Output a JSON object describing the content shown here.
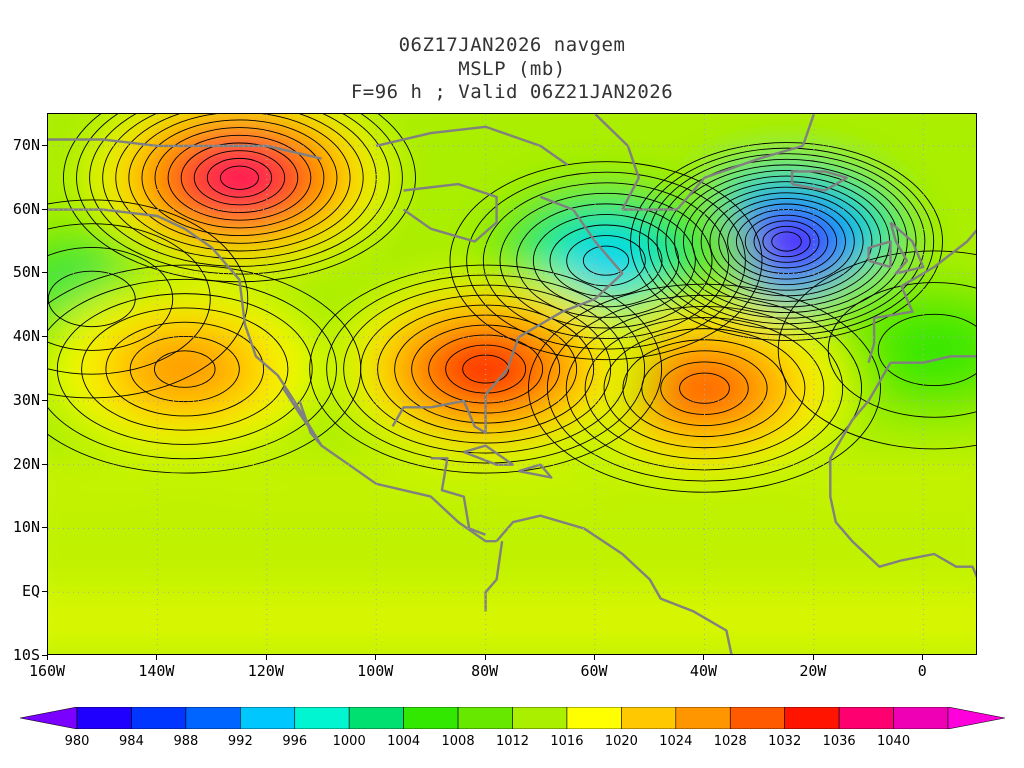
{
  "header": {
    "line1": "06Z17JAN2026 navgem",
    "line2": "MSLP (mb)",
    "line3": "F=96 h ; Valid 06Z21JAN2026"
  },
  "map": {
    "lon_range": [
      -160,
      10
    ],
    "lat_range": [
      -10,
      75
    ],
    "lat_labels": [
      "70N",
      "60N",
      "50N",
      "40N",
      "30N",
      "20N",
      "10N",
      "EQ",
      "10S"
    ],
    "lat_values": [
      70,
      60,
      50,
      40,
      30,
      20,
      10,
      0,
      -10
    ],
    "lon_labels": [
      "160W",
      "140W",
      "120W",
      "100W",
      "80W",
      "60W",
      "40W",
      "20W",
      "0"
    ],
    "lon_values": [
      -160,
      -140,
      -120,
      -100,
      -80,
      -60,
      -40,
      -20,
      0
    ],
    "pressure_systems": [
      {
        "type": "low",
        "lon": -25,
        "lat": 55,
        "value": 978
      },
      {
        "type": "low",
        "lon": -58,
        "lat": 52,
        "value": 994
      },
      {
        "type": "low",
        "lon": -152,
        "lat": 46,
        "value": 1004
      },
      {
        "type": "low",
        "lon": 2,
        "lat": 38,
        "value": 1008
      },
      {
        "type": "high",
        "lon": -40,
        "lat": 32,
        "value": 1030
      },
      {
        "type": "high",
        "lon": -80,
        "lat": 35,
        "value": 1032
      },
      {
        "type": "high",
        "lon": -135,
        "lat": 35,
        "value": 1026
      },
      {
        "type": "high",
        "lon": -125,
        "lat": 65,
        "value": 1038
      }
    ]
  },
  "colorbar": {
    "labels": [
      "980",
      "984",
      "988",
      "992",
      "996",
      "1000",
      "1004",
      "1008",
      "1012",
      "1016",
      "1020",
      "1024",
      "1028",
      "1032",
      "1036",
      "1040"
    ],
    "colors": [
      "#1f00ff",
      "#0036ff",
      "#0064ff",
      "#00c8ff",
      "#00f5d0",
      "#00e070",
      "#33e800",
      "#66e800",
      "#aaee00",
      "#ffff00",
      "#ffc800",
      "#ff9600",
      "#ff5a00",
      "#ff1400",
      "#ff0070",
      "#f000b4"
    ],
    "low_end_color": "#7a00ff",
    "high_end_color": "#ff00dc"
  }
}
